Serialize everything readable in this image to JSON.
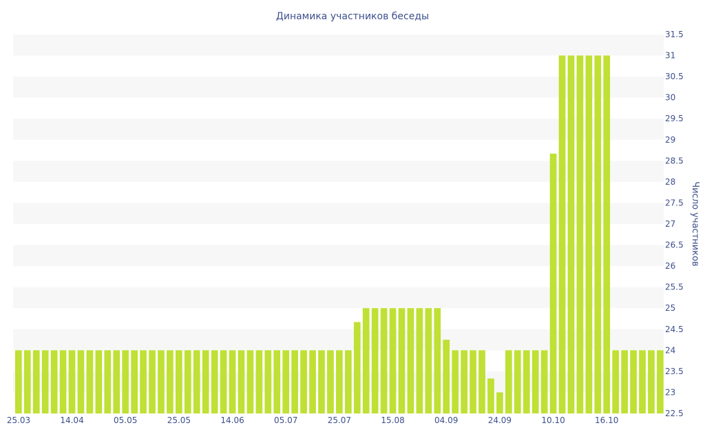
{
  "chart_data": {
    "type": "bar",
    "title": "Динамика участников беседы",
    "xlabel": "",
    "ylabel": "Число участников",
    "ylim": [
      22.5,
      31.5
    ],
    "ytick_step": 0.5,
    "y_axis_side": "right",
    "grid": "alternating-bands",
    "bar_color": "#bfe034",
    "band_color": "#f7f7f7",
    "text_color": "#3d4f8c",
    "x_tick_labels": [
      "25.03",
      "14.04",
      "05.05",
      "25.05",
      "14.06",
      "05.07",
      "25.07",
      "15.08",
      "04.09",
      "24.09",
      "10.10",
      "16.10"
    ],
    "x_tick_bar_index": [
      0,
      6,
      12,
      18,
      24,
      30,
      36,
      42,
      48,
      54,
      60,
      66
    ],
    "values": [
      24,
      24,
      24,
      24,
      24,
      24,
      24,
      24,
      24,
      24,
      24,
      24,
      24,
      24,
      24,
      24,
      24,
      24,
      24,
      24,
      24,
      24,
      24,
      24,
      24,
      24,
      24,
      24,
      24,
      24,
      24,
      24,
      24,
      24,
      24,
      24,
      24,
      24,
      24.67,
      25,
      25,
      25,
      25,
      25,
      25,
      25,
      25,
      25,
      24.25,
      24,
      24,
      24,
      24,
      23.33,
      23,
      24,
      24,
      24,
      24,
      24,
      28.67,
      31,
      31,
      31,
      31,
      31,
      31,
      24,
      24,
      24,
      24,
      24,
      24
    ]
  }
}
